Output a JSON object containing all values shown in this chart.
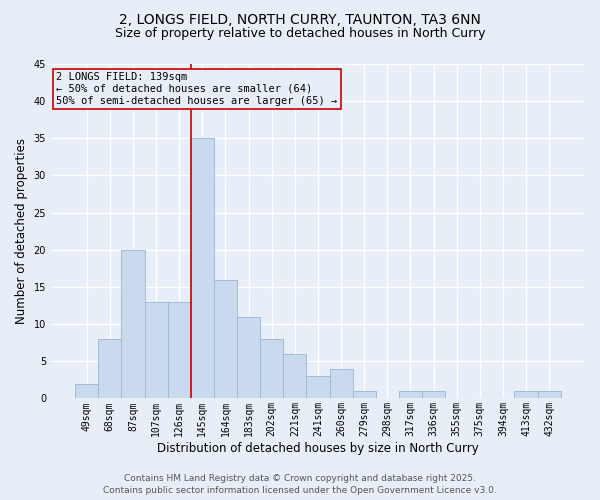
{
  "title1": "2, LONGS FIELD, NORTH CURRY, TAUNTON, TA3 6NN",
  "title2": "Size of property relative to detached houses in North Curry",
  "xlabel": "Distribution of detached houses by size in North Curry",
  "ylabel": "Number of detached properties",
  "categories": [
    "49sqm",
    "68sqm",
    "87sqm",
    "107sqm",
    "126sqm",
    "145sqm",
    "164sqm",
    "183sqm",
    "202sqm",
    "221sqm",
    "241sqm",
    "260sqm",
    "279sqm",
    "298sqm",
    "317sqm",
    "336sqm",
    "355sqm",
    "375sqm",
    "394sqm",
    "413sqm",
    "432sqm"
  ],
  "values": [
    2,
    8,
    20,
    13,
    13,
    35,
    16,
    11,
    8,
    6,
    3,
    4,
    1,
    0,
    1,
    1,
    0,
    0,
    0,
    1,
    1
  ],
  "bar_color": "#c9d9ee",
  "bar_edge_color": "#9ab5d5",
  "vline_x_index": 5,
  "vline_color": "#cc0000",
  "annotation_text": "2 LONGS FIELD: 139sqm\n← 50% of detached houses are smaller (64)\n50% of semi-detached houses are larger (65) →",
  "annotation_box_color": "#cc0000",
  "ylim": [
    0,
    45
  ],
  "yticks": [
    0,
    5,
    10,
    15,
    20,
    25,
    30,
    35,
    40,
    45
  ],
  "footer": "Contains HM Land Registry data © Crown copyright and database right 2025.\nContains public sector information licensed under the Open Government Licence v3.0.",
  "background_color": "#e8eef8",
  "plot_bg_color": "#e8eef8",
  "grid_color": "#ffffff",
  "title_fontsize": 10,
  "subtitle_fontsize": 9,
  "axis_label_fontsize": 8.5,
  "tick_fontsize": 7,
  "footer_fontsize": 6.5,
  "annotation_fontsize": 7.5
}
